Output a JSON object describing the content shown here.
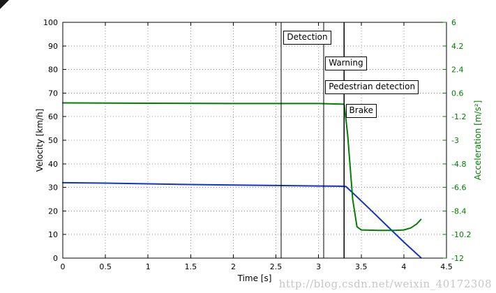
{
  "figure": {
    "watermark": "http://blog.csdn.net/weixin_40172308"
  },
  "chart_data": {
    "type": "line",
    "title": "",
    "xlabel": "Time [s]",
    "ylabel_left": "Velocity [km/h]",
    "ylabel_right": "Acceleration [m/s²]",
    "xlim": [
      0,
      4.5
    ],
    "ylim_left": [
      0,
      100
    ],
    "ylim_right": [
      -12,
      6
    ],
    "xticks": [
      0,
      0.5,
      1,
      1.5,
      2,
      2.5,
      3,
      3.5,
      4,
      4.5
    ],
    "yticks_left": [
      0,
      10,
      20,
      30,
      40,
      50,
      60,
      70,
      80,
      90,
      100
    ],
    "yticks_right": [
      -12,
      -10.2,
      -8.4,
      -6.6,
      -4.8,
      -3,
      -1.2,
      0.6,
      2.4,
      4.2,
      6
    ],
    "grid": true,
    "legend": "none",
    "colors": {
      "grid": "#999999",
      "axis": "#000000",
      "right_text": "#008000"
    },
    "event_lines": [
      {
        "x": 2.56
      },
      {
        "x": 3.06
      },
      {
        "x": 3.3
      }
    ],
    "annotations": [
      {
        "text": "Detection",
        "x": 2.58,
        "y": 93.5
      },
      {
        "text": "Warning",
        "x": 3.07,
        "y": 82.5
      },
      {
        "text": "Pedestrian detection",
        "x": 3.07,
        "y": 72.5
      },
      {
        "text": "Brake",
        "x": 3.31,
        "y": 62.5
      }
    ],
    "series": [
      {
        "name": "velocity",
        "axis": "left",
        "color": "#1133cc",
        "points": [
          [
            0,
            32
          ],
          [
            0.5,
            31.8
          ],
          [
            1,
            31.5
          ],
          [
            1.5,
            31.2
          ],
          [
            2,
            31
          ],
          [
            2.5,
            30.8
          ],
          [
            3,
            30.6
          ],
          [
            3.25,
            30.5
          ],
          [
            3.32,
            30.4
          ],
          [
            3.45,
            26
          ],
          [
            3.6,
            20.8
          ],
          [
            3.8,
            13.8
          ],
          [
            4,
            6.8
          ],
          [
            4.2,
            0.2
          ]
        ]
      },
      {
        "name": "acceleration",
        "axis": "right",
        "color": "#008000",
        "points": [
          [
            0,
            -0.15
          ],
          [
            1,
            -0.18
          ],
          [
            2,
            -0.2
          ],
          [
            3,
            -0.2
          ],
          [
            3.3,
            -0.25
          ],
          [
            3.34,
            -2.5
          ],
          [
            3.4,
            -7.5
          ],
          [
            3.45,
            -9.6
          ],
          [
            3.5,
            -9.85
          ],
          [
            3.7,
            -9.88
          ],
          [
            3.9,
            -9.88
          ],
          [
            4.0,
            -9.85
          ],
          [
            4.08,
            -9.7
          ],
          [
            4.15,
            -9.4
          ],
          [
            4.2,
            -9.05
          ]
        ]
      }
    ]
  }
}
